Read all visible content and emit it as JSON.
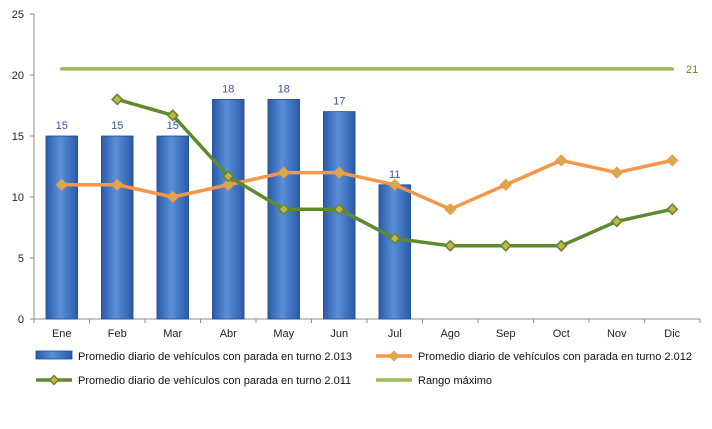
{
  "chart_data": {
    "type": "bar",
    "categories": [
      "Ene",
      "Feb",
      "Mar",
      "Abr",
      "May",
      "Jun",
      "Jul",
      "Ago",
      "Sep",
      "Oct",
      "Nov",
      "Dic"
    ],
    "ylim": [
      0,
      25
    ],
    "yticks": [
      0,
      5,
      10,
      15,
      20,
      25
    ],
    "grid": false,
    "legend_position": "bottom",
    "series": [
      {
        "name": "Promedio diario de vehículos con parada en turno 2.013",
        "type": "bar",
        "color": "#3a6fc4",
        "values": [
          15,
          15,
          15,
          18,
          18,
          17,
          11,
          null,
          null,
          null,
          null,
          null
        ],
        "data_labels": true
      },
      {
        "name": "Promedio diario de vehículos con parada en turno 2.012",
        "type": "line",
        "color": "#f79646",
        "marker": "diamond",
        "values": [
          11,
          11,
          10,
          11,
          12,
          12,
          11,
          9,
          11,
          13,
          12,
          13
        ]
      },
      {
        "name": "Promedio diario de vehículos con parada en turno 2.011",
        "type": "line",
        "color": "#5e8a2e",
        "marker": "diamond",
        "values": [
          null,
          18,
          16.7,
          11.7,
          9,
          9,
          6.6,
          6,
          6,
          6,
          8,
          9
        ]
      },
      {
        "name": "Rango máximo",
        "type": "line",
        "color": "#9bbb59",
        "marker": "none",
        "values": [
          20.5,
          20.5,
          20.5,
          20.5,
          20.5,
          20.5,
          20.5,
          20.5,
          20.5,
          20.5,
          20.5,
          20.5
        ],
        "end_label": "21"
      }
    ]
  }
}
